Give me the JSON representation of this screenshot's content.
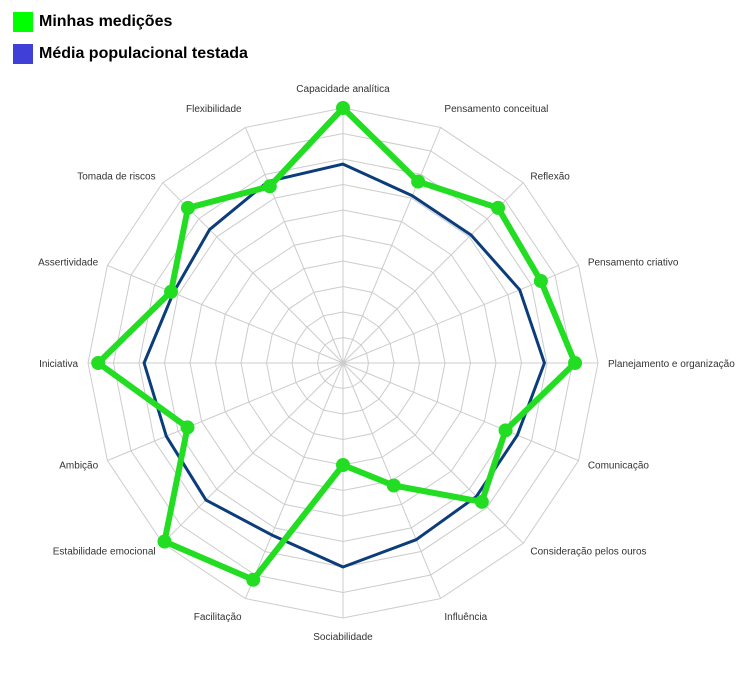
{
  "legend": {
    "mine_label": "Minhas medições",
    "avg_label": "Média populacional testada"
  },
  "colors": {
    "mine": "#22dd22",
    "mine_swatch": "#00ff00",
    "avg": "#0b3d7a",
    "avg_swatch": "#4040d8",
    "grid": "#cccccc"
  },
  "chart_data": {
    "type": "radar",
    "axes": [
      "Capacidade analítica",
      "Pensamento conceitual",
      "Reflexão",
      "Pensamento criativo",
      "Planejamento e organização",
      "Comunicação",
      "Consideração pelos ouros",
      "Influência",
      "Sociabilidade",
      "Facilitação",
      "Estabilidade emocional",
      "Ambição",
      "Iniciativa",
      "Assertividade",
      "Tomada de riscos",
      "Flexibilidade"
    ],
    "rlim": [
      0,
      10
    ],
    "rings": 10,
    "series": [
      {
        "name": "Minhas medições",
        "values": [
          10,
          7.7,
          8.6,
          8.4,
          9.1,
          6.9,
          7.7,
          5.2,
          4.0,
          9.2,
          9.9,
          6.6,
          9.6,
          7.3,
          8.6,
          7.5
        ]
      },
      {
        "name": "Média populacional testada",
        "values": [
          7.8,
          7.1,
          7.1,
          7.5,
          7.9,
          7.4,
          7.4,
          7.5,
          8.0,
          7.3,
          7.6,
          7.5,
          7.8,
          7.2,
          7.4,
          7.7
        ]
      }
    ],
    "grid": true,
    "legend_position": "top-left"
  }
}
